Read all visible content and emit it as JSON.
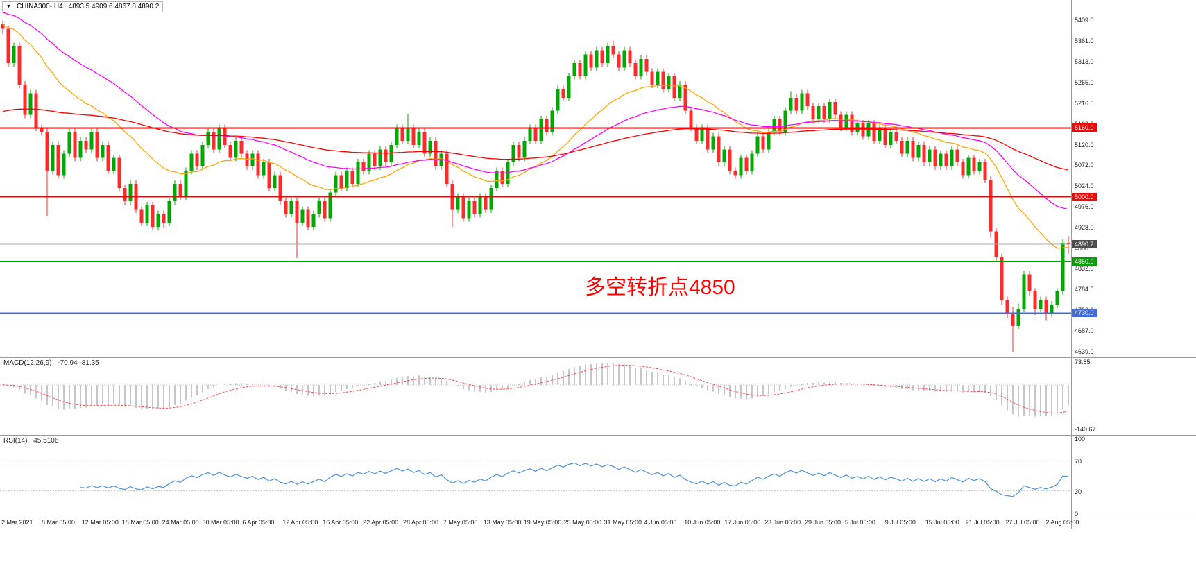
{
  "symbol_bar": {
    "dropdown_icon": "▼",
    "symbol": "CHINA300-,H4",
    "ohlc": "4893.5 4909.6 4867.8 4890.2"
  },
  "chart_data": {
    "type": "candlestick",
    "title": "CHINA300-,H4",
    "timeframe": "H4",
    "ylim": [
      4629,
      5431
    ],
    "colors": {
      "up": "#00A800",
      "down": "#FF2A2A"
    },
    "candles": [
      [
        5400,
        5409,
        5378,
        5390
      ],
      [
        5390,
        5398,
        5302,
        5310
      ],
      [
        5310,
        5358,
        5302,
        5350
      ],
      [
        5350,
        5358,
        5252,
        5260
      ],
      [
        5260,
        5268,
        5182,
        5190
      ],
      [
        5190,
        5248,
        5182,
        5240
      ],
      [
        5240,
        5248,
        5152,
        5160
      ],
      [
        5160,
        5168,
        5142,
        5150
      ],
      [
        5150,
        5158,
        4955,
        5060
      ],
      [
        5060,
        5128,
        5052,
        5120
      ],
      [
        5120,
        5128,
        5042,
        5050
      ],
      [
        5050,
        5108,
        5042,
        5100
      ],
      [
        5100,
        5158,
        5092,
        5150
      ],
      [
        5150,
        5158,
        5082,
        5090
      ],
      [
        5090,
        5138,
        5082,
        5130
      ],
      [
        5130,
        5138,
        5102,
        5110
      ],
      [
        5110,
        5158,
        5102,
        5150
      ],
      [
        5150,
        5158,
        5082,
        5090
      ],
      [
        5090,
        5128,
        5082,
        5120
      ],
      [
        5120,
        5128,
        5052,
        5060
      ],
      [
        5060,
        5098,
        5052,
        5090
      ],
      [
        5090,
        5098,
        5012,
        5020
      ],
      [
        5020,
        5028,
        4982,
        4990
      ],
      [
        4990,
        5038,
        4982,
        5030
      ],
      [
        5030,
        5038,
        4962,
        4970
      ],
      [
        4970,
        4978,
        4932,
        4940
      ],
      [
        4940,
        4988,
        4932,
        4980
      ],
      [
        4980,
        4988,
        4922,
        4930
      ],
      [
        4930,
        4968,
        4922,
        4960
      ],
      [
        4960,
        4968,
        4928,
        4940
      ],
      [
        4940,
        4998,
        4932,
        4990
      ],
      [
        4990,
        5038,
        4982,
        5030
      ],
      [
        5030,
        5038,
        4992,
        5000
      ],
      [
        5000,
        5068,
        4992,
        5060
      ],
      [
        5060,
        5108,
        5052,
        5100
      ],
      [
        5100,
        5108,
        5062,
        5070
      ],
      [
        5070,
        5128,
        5062,
        5120
      ],
      [
        5120,
        5158,
        5112,
        5150
      ],
      [
        5150,
        5158,
        5102,
        5110
      ],
      [
        5110,
        5168,
        5102,
        5160
      ],
      [
        5160,
        5168,
        5112,
        5120
      ],
      [
        5120,
        5128,
        5082,
        5090
      ],
      [
        5090,
        5138,
        5082,
        5130
      ],
      [
        5130,
        5138,
        5092,
        5100
      ],
      [
        5100,
        5108,
        5062,
        5070
      ],
      [
        5070,
        5108,
        5062,
        5100
      ],
      [
        5100,
        5108,
        5042,
        5050
      ],
      [
        5050,
        5088,
        5042,
        5080
      ],
      [
        5080,
        5088,
        5012,
        5020
      ],
      [
        5020,
        5058,
        5012,
        5050
      ],
      [
        5050,
        5058,
        4982,
        4990
      ],
      [
        4990,
        4998,
        4952,
        4960
      ],
      [
        4960,
        4998,
        4952,
        4990
      ],
      [
        4990,
        4998,
        4858,
        4940
      ],
      [
        4940,
        4978,
        4932,
        4970
      ],
      [
        4970,
        4978,
        4922,
        4930
      ],
      [
        4930,
        4968,
        4922,
        4960
      ],
      [
        4960,
        4998,
        4952,
        4990
      ],
      [
        4990,
        4998,
        4942,
        4950
      ],
      [
        4950,
        5018,
        4942,
        5010
      ],
      [
        5010,
        5058,
        5002,
        5050
      ],
      [
        5050,
        5058,
        5012,
        5020
      ],
      [
        5020,
        5068,
        5012,
        5060
      ],
      [
        5060,
        5068,
        5022,
        5030
      ],
      [
        5030,
        5088,
        5022,
        5080
      ],
      [
        5080,
        5088,
        5052,
        5060
      ],
      [
        5060,
        5108,
        5052,
        5100
      ],
      [
        5100,
        5108,
        5062,
        5070
      ],
      [
        5070,
        5118,
        5062,
        5110
      ],
      [
        5110,
        5118,
        5072,
        5080
      ],
      [
        5080,
        5128,
        5072,
        5120
      ],
      [
        5120,
        5168,
        5112,
        5160
      ],
      [
        5160,
        5168,
        5122,
        5130
      ],
      [
        5130,
        5192,
        5122,
        5160
      ],
      [
        5160,
        5168,
        5112,
        5120
      ],
      [
        5120,
        5158,
        5112,
        5150
      ],
      [
        5150,
        5158,
        5092,
        5100
      ],
      [
        5100,
        5138,
        5092,
        5130
      ],
      [
        5130,
        5138,
        5062,
        5070
      ],
      [
        5070,
        5108,
        5062,
        5100
      ],
      [
        5100,
        5108,
        5022,
        5030
      ],
      [
        5030,
        5038,
        4930,
        4970
      ],
      [
        4970,
        5008,
        4962,
        5000
      ],
      [
        5000,
        5008,
        4942,
        4950
      ],
      [
        4950,
        4998,
        4942,
        4990
      ],
      [
        4990,
        4998,
        4952,
        4960
      ],
      [
        4960,
        5008,
        4952,
        5000
      ],
      [
        5000,
        5008,
        4962,
        4970
      ],
      [
        4970,
        5028,
        4962,
        5020
      ],
      [
        5020,
        5068,
        5012,
        5060
      ],
      [
        5060,
        5068,
        5022,
        5030
      ],
      [
        5030,
        5088,
        5022,
        5080
      ],
      [
        5080,
        5128,
        5072,
        5120
      ],
      [
        5120,
        5128,
        5082,
        5090
      ],
      [
        5090,
        5138,
        5082,
        5130
      ],
      [
        5130,
        5168,
        5122,
        5160
      ],
      [
        5160,
        5168,
        5122,
        5130
      ],
      [
        5130,
        5188,
        5122,
        5180
      ],
      [
        5180,
        5188,
        5142,
        5150
      ],
      [
        5150,
        5208,
        5142,
        5200
      ],
      [
        5200,
        5258,
        5192,
        5250
      ],
      [
        5250,
        5258,
        5222,
        5230
      ],
      [
        5230,
        5288,
        5222,
        5280
      ],
      [
        5280,
        5318,
        5272,
        5310
      ],
      [
        5310,
        5318,
        5272,
        5280
      ],
      [
        5280,
        5338,
        5272,
        5330
      ],
      [
        5330,
        5338,
        5292,
        5300
      ],
      [
        5300,
        5348,
        5292,
        5340
      ],
      [
        5340,
        5348,
        5302,
        5310
      ],
      [
        5310,
        5358,
        5302,
        5350
      ],
      [
        5350,
        5362,
        5322,
        5330
      ],
      [
        5330,
        5338,
        5292,
        5300
      ],
      [
        5300,
        5348,
        5292,
        5340
      ],
      [
        5340,
        5348,
        5302,
        5310
      ],
      [
        5310,
        5318,
        5272,
        5280
      ],
      [
        5280,
        5328,
        5272,
        5320
      ],
      [
        5320,
        5328,
        5282,
        5290
      ],
      [
        5290,
        5298,
        5252,
        5260
      ],
      [
        5260,
        5298,
        5252,
        5290
      ],
      [
        5290,
        5298,
        5242,
        5250
      ],
      [
        5250,
        5288,
        5242,
        5280
      ],
      [
        5280,
        5288,
        5222,
        5230
      ],
      [
        5230,
        5268,
        5222,
        5260
      ],
      [
        5260,
        5268,
        5192,
        5200
      ],
      [
        5200,
        5208,
        5152,
        5160
      ],
      [
        5160,
        5168,
        5122,
        5130
      ],
      [
        5130,
        5168,
        5122,
        5160
      ],
      [
        5160,
        5168,
        5102,
        5110
      ],
      [
        5110,
        5148,
        5102,
        5140
      ],
      [
        5140,
        5148,
        5072,
        5080
      ],
      [
        5080,
        5118,
        5072,
        5110
      ],
      [
        5110,
        5118,
        5052,
        5060
      ],
      [
        5060,
        5068,
        5042,
        5050
      ],
      [
        5050,
        5098,
        5042,
        5090
      ],
      [
        5090,
        5098,
        5052,
        5060
      ],
      [
        5060,
        5108,
        5052,
        5100
      ],
      [
        5100,
        5148,
        5092,
        5140
      ],
      [
        5140,
        5148,
        5102,
        5110
      ],
      [
        5110,
        5158,
        5102,
        5150
      ],
      [
        5150,
        5188,
        5142,
        5180
      ],
      [
        5180,
        5188,
        5142,
        5150
      ],
      [
        5150,
        5208,
        5142,
        5200
      ],
      [
        5200,
        5245,
        5192,
        5230
      ],
      [
        5230,
        5238,
        5192,
        5200
      ],
      [
        5200,
        5248,
        5192,
        5240
      ],
      [
        5240,
        5248,
        5202,
        5210
      ],
      [
        5210,
        5218,
        5172,
        5180
      ],
      [
        5180,
        5218,
        5172,
        5210
      ],
      [
        5210,
        5218,
        5172,
        5180
      ],
      [
        5180,
        5228,
        5172,
        5220
      ],
      [
        5220,
        5228,
        5182,
        5190
      ],
      [
        5190,
        5198,
        5152,
        5160
      ],
      [
        5160,
        5198,
        5152,
        5190
      ],
      [
        5190,
        5198,
        5142,
        5150
      ],
      [
        5150,
        5178,
        5142,
        5170
      ],
      [
        5170,
        5178,
        5132,
        5140
      ],
      [
        5140,
        5178,
        5132,
        5170
      ],
      [
        5170,
        5178,
        5122,
        5130
      ],
      [
        5130,
        5168,
        5122,
        5160
      ],
      [
        5160,
        5168,
        5112,
        5120
      ],
      [
        5120,
        5158,
        5112,
        5150
      ],
      [
        5150,
        5158,
        5122,
        5130
      ],
      [
        5130,
        5138,
        5092,
        5100
      ],
      [
        5100,
        5138,
        5092,
        5130
      ],
      [
        5130,
        5138,
        5082,
        5090
      ],
      [
        5090,
        5128,
        5082,
        5120
      ],
      [
        5120,
        5128,
        5072,
        5080
      ],
      [
        5080,
        5118,
        5072,
        5110
      ],
      [
        5110,
        5118,
        5062,
        5070
      ],
      [
        5070,
        5108,
        5062,
        5100
      ],
      [
        5100,
        5108,
        5062,
        5070
      ],
      [
        5070,
        5118,
        5062,
        5110
      ],
      [
        5110,
        5118,
        5072,
        5080
      ],
      [
        5080,
        5088,
        5042,
        5050
      ],
      [
        5050,
        5098,
        5042,
        5090
      ],
      [
        5090,
        5098,
        5052,
        5060
      ],
      [
        5060,
        5088,
        5052,
        5080
      ],
      [
        5080,
        5088,
        5032,
        5040
      ],
      [
        5040,
        5048,
        4905,
        4920
      ],
      [
        4920,
        4928,
        4850,
        4860
      ],
      [
        4860,
        4868,
        4748,
        4760
      ],
      [
        4760,
        4768,
        4718,
        4730
      ],
      [
        4730,
        4745,
        4640,
        4700
      ],
      [
        4700,
        4752,
        4692,
        4740
      ],
      [
        4740,
        4828,
        4732,
        4820
      ],
      [
        4820,
        4828,
        4770,
        4780
      ],
      [
        4780,
        4788,
        4726,
        4740
      ],
      [
        4740,
        4768,
        4732,
        4760
      ],
      [
        4760,
        4768,
        4712,
        4730
      ],
      [
        4730,
        4758,
        4722,
        4750
      ],
      [
        4750,
        4788,
        4742,
        4780
      ],
      [
        4780,
        4902,
        4772,
        4893.5
      ],
      [
        4893.5,
        4909.6,
        4867.8,
        4890.2
      ]
    ],
    "overlays": [
      {
        "name": "ma-fast",
        "color": "#FFA500",
        "period": 24,
        "seed": 5400
      },
      {
        "name": "ma-mid",
        "color": "#FF00FF",
        "period": 48,
        "seed": 5430
      },
      {
        "name": "ma-slow",
        "color": "#FF0000",
        "period": 120,
        "seed": 5195
      }
    ],
    "hlines": [
      {
        "label": "5160.0",
        "value": 5160.0,
        "color": "#FF0000"
      },
      {
        "label": "5000.0",
        "value": 5000.0,
        "color": "#FF0000"
      },
      {
        "label": "4850.0",
        "value": 4850.0,
        "color": "#00A000"
      },
      {
        "label": "4730.0",
        "value": 4730.0,
        "color": "#4169E1"
      }
    ],
    "current_price": {
      "label": "4890.2",
      "value": 4890.2,
      "line_color": "#AAAAAA",
      "badge_color": "#4D4D4D"
    },
    "annotation": {
      "text": "多空转折点4850",
      "color": "#FF0000"
    },
    "price_axis_ticks": [
      "5409.0",
      "5361.0",
      "5313.0",
      "5265.0",
      "5216.0",
      "5168.0",
      "5120.0",
      "5072.0",
      "5024.0",
      "4976.0",
      "4928.0",
      "4880.0",
      "4832.0",
      "4784.0",
      "4736.0",
      "4687.0",
      "4639.0"
    ],
    "time_axis_ticks": [
      "2 Mar 2021",
      "8 Mar 05:00",
      "12 Mar 05:00",
      "18 Mar 05:00",
      "24 Mar 05:00",
      "30 Mar 05:00",
      "6 Apr 05:00",
      "12 Apr 05:00",
      "16 Apr 05:00",
      "22 Apr 05:00",
      "28 Apr 05:00",
      "7 May 05:00",
      "13 May 05:00",
      "19 May 05:00",
      "25 May 05:00",
      "31 May 05:00",
      "4 Jun 05:00",
      "10 Jun 05:00",
      "17 Jun 05:00",
      "23 Jun 05:00",
      "29 Jun 05:00",
      "5 Jul 05:00",
      "9 Jul 05:00",
      "15 Jul 05:00",
      "21 Jul 05:00",
      "27 Jul 05:00",
      "2 Aug 05:00"
    ],
    "indicators": {
      "macd": {
        "name": "MACD(12,26,9)",
        "values": "-70.94 -81.35",
        "params": [
          12,
          26,
          9
        ],
        "axis": [
          {
            "label": "73.85",
            "value": 73.85
          },
          {
            "label": "-140.67",
            "value": -140.67
          }
        ],
        "ylim": [
          86,
          -158
        ],
        "histogram_color": "#C6C6CC",
        "signal_color": "#FF4444"
      },
      "rsi": {
        "name": "RSI(14)",
        "values": "45.5106",
        "params": [
          14
        ],
        "axis": [
          {
            "label": "100",
            "value": 100
          },
          {
            "label": "70",
            "value": 70
          },
          {
            "label": "30",
            "value": 30
          },
          {
            "label": "0",
            "value": 0
          }
        ],
        "levels": [
          70,
          30
        ],
        "line_color": "#4A90D9"
      }
    }
  }
}
